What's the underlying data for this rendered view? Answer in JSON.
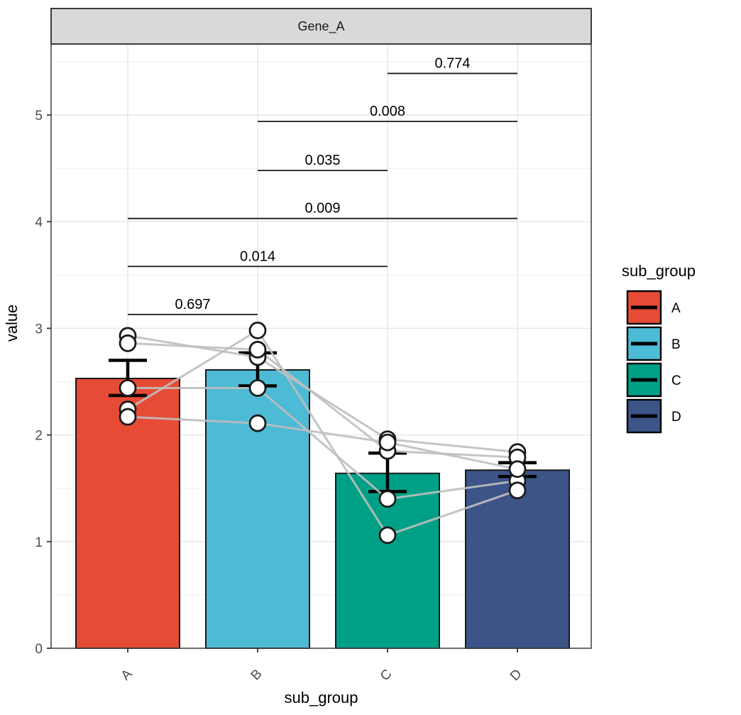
{
  "chart_data": {
    "type": "bar",
    "title": "Gene_A",
    "xlabel": "sub_group",
    "ylabel": "value",
    "ylim": [
      0,
      5.67
    ],
    "yticks": [
      0,
      1,
      2,
      3,
      4,
      5
    ],
    "ytick_minor_step": 0.5,
    "grid": true,
    "categories": [
      "A",
      "B",
      "C",
      "D"
    ],
    "bars": [
      {
        "category": "A",
        "mean": 2.53,
        "err_low": 2.37,
        "err_high": 2.7
      },
      {
        "category": "B",
        "mean": 2.61,
        "err_low": 2.46,
        "err_high": 2.77
      },
      {
        "category": "C",
        "mean": 1.64,
        "err_low": 1.47,
        "err_high": 1.83
      },
      {
        "category": "D",
        "mean": 1.67,
        "err_low": 1.61,
        "err_high": 1.74
      }
    ],
    "subjects": [
      {
        "values": [
          2.93,
          2.73,
          1.96,
          1.84
        ]
      },
      {
        "values": [
          2.86,
          2.8,
          1.85,
          1.79
        ]
      },
      {
        "values": [
          2.44,
          2.44,
          1.4,
          1.57
        ]
      },
      {
        "values": [
          2.24,
          2.98,
          1.06,
          1.48
        ]
      },
      {
        "values": [
          2.17,
          2.11,
          1.93,
          1.68
        ]
      }
    ],
    "comparisons": [
      {
        "group1": "A",
        "group2": "B",
        "p": "0.697",
        "y": 3.13
      },
      {
        "group1": "A",
        "group2": "C",
        "p": "0.014",
        "y": 3.58
      },
      {
        "group1": "A",
        "group2": "D",
        "p": "0.009",
        "y": 4.03
      },
      {
        "group1": "B",
        "group2": "C",
        "p": "0.035",
        "y": 4.48
      },
      {
        "group1": "B",
        "group2": "D",
        "p": "0.008",
        "y": 4.94
      },
      {
        "group1": "C",
        "group2": "D",
        "p": "0.774",
        "y": 5.39
      }
    ],
    "palette": {
      "A": "#E64B35",
      "B": "#4DBBD5",
      "C": "#00A087",
      "D": "#3C5488"
    },
    "colors": {
      "point_fill": "#ffffff",
      "point_stroke": "#1a1a1a",
      "pair_line": "#bfbfbf",
      "bar_stroke": "#1a1a1a",
      "errorbar": "#000000",
      "bracket": "#1a1a1a",
      "strip_fill": "#d9d9d9",
      "strip_border": "#3c3c3c",
      "panel_border": "#4a4a4a",
      "grid_major": "#e6e6e6",
      "grid_minor": "#f2f2f2",
      "tick_mark": "#333333"
    },
    "legend": {
      "title": "sub_group",
      "position": "right",
      "entries": [
        {
          "label": "A",
          "color": "#E64B35"
        },
        {
          "label": "B",
          "color": "#4DBBD5"
        },
        {
          "label": "C",
          "color": "#00A087"
        },
        {
          "label": "D",
          "color": "#3C5488"
        }
      ]
    }
  }
}
